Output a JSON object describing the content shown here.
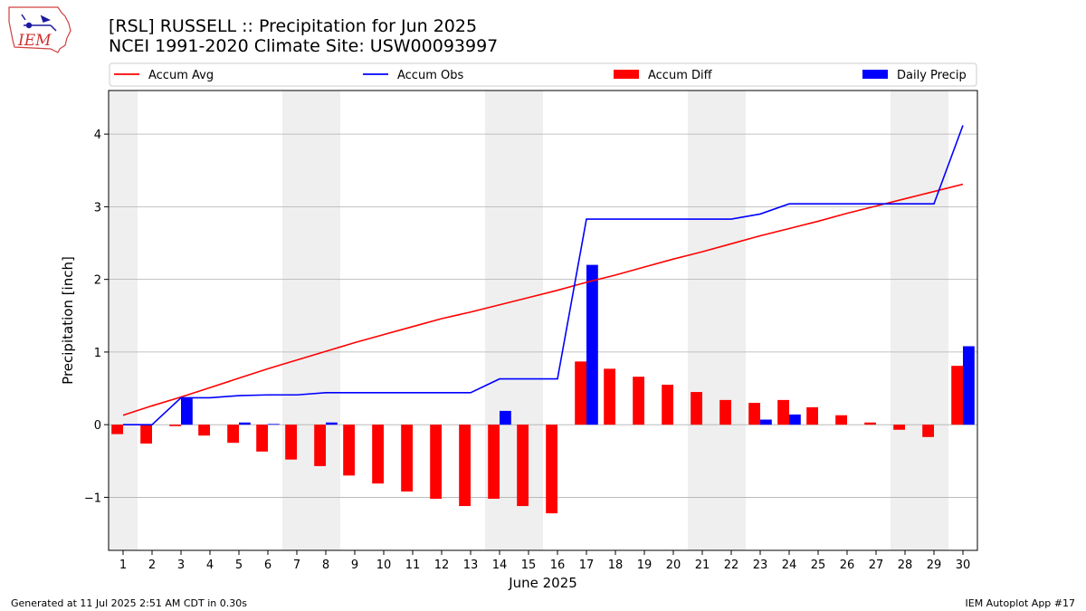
{
  "header": {
    "title_line1": "[RSL] RUSSELL :: Precipitation for Jun 2025",
    "title_line2": "NCEI 1991-2020 Climate Site: USW00093997"
  },
  "logo": {
    "text": "IEM"
  },
  "footer": {
    "generated": "Generated at 11 Jul 2025 2:51 AM CDT in 0.30s",
    "app": "IEM Autoplot App #17"
  },
  "colors": {
    "accum_avg": "#ff0000",
    "accum_obs": "#0000ff",
    "accum_diff": "#ff0000",
    "daily_precip": "#0000ff",
    "weekend_band": "#efefef",
    "grid": "#b0b0b0"
  },
  "chart_data": {
    "type": "bar",
    "xlabel": "June 2025",
    "ylabel": "Precipitation [inch]",
    "xlim": [
      0.5,
      30.5
    ],
    "ylim": [
      -1.73,
      4.6
    ],
    "yticks": [
      -1,
      0,
      1,
      2,
      3,
      4
    ],
    "ytick_labels": [
      "−1",
      "0",
      "1",
      "2",
      "3",
      "4"
    ],
    "grid": "horizontal",
    "legend_placement": "top, above plot",
    "weekend_bands": [
      [
        0.5,
        1.5
      ],
      [
        6.5,
        8.5
      ],
      [
        13.5,
        15.5
      ],
      [
        20.5,
        22.5
      ],
      [
        27.5,
        29.5
      ]
    ],
    "days": [
      1,
      2,
      3,
      4,
      5,
      6,
      7,
      8,
      9,
      10,
      11,
      12,
      13,
      14,
      15,
      16,
      17,
      18,
      19,
      20,
      21,
      22,
      23,
      24,
      25,
      26,
      27,
      28,
      29,
      30
    ],
    "series": [
      {
        "name": "Accum Avg",
        "kind": "line",
        "values": [
          0.13,
          0.26,
          0.38,
          0.51,
          0.64,
          0.77,
          0.89,
          1.01,
          1.13,
          1.24,
          1.35,
          1.46,
          1.55,
          1.65,
          1.75,
          1.85,
          1.96,
          2.06,
          2.17,
          2.28,
          2.38,
          2.49,
          2.6,
          2.7,
          2.8,
          2.91,
          3.01,
          3.11,
          3.21,
          3.31
        ]
      },
      {
        "name": "Accum Obs",
        "kind": "line",
        "values": [
          0.0,
          0.0,
          0.37,
          0.37,
          0.4,
          0.41,
          0.41,
          0.44,
          0.44,
          0.44,
          0.44,
          0.44,
          0.44,
          0.63,
          0.63,
          0.63,
          2.83,
          2.83,
          2.83,
          2.83,
          2.83,
          2.83,
          2.9,
          3.04,
          3.04,
          3.04,
          3.04,
          3.04,
          3.04,
          4.12
        ]
      },
      {
        "name": "Accum Diff",
        "kind": "bar",
        "values": [
          -0.13,
          -0.26,
          -0.02,
          -0.15,
          -0.25,
          -0.37,
          -0.48,
          -0.57,
          -0.7,
          -0.81,
          -0.92,
          -1.02,
          -1.12,
          -1.02,
          -1.12,
          -1.22,
          0.87,
          0.77,
          0.66,
          0.55,
          0.45,
          0.34,
          0.3,
          0.34,
          0.24,
          0.13,
          0.03,
          -0.07,
          -0.17,
          0.81
        ]
      },
      {
        "name": "Daily Precip",
        "kind": "bar",
        "values": [
          0.0,
          0.0,
          0.37,
          0.0,
          0.03,
          0.01,
          0.0,
          0.03,
          0.0,
          0.0,
          0.0,
          0.0,
          0.0,
          0.19,
          0.0,
          0.0,
          2.2,
          0.0,
          0.0,
          0.0,
          0.0,
          0.0,
          0.07,
          0.14,
          0.0,
          0.0,
          0.0,
          0.0,
          0.0,
          1.08
        ]
      }
    ]
  }
}
